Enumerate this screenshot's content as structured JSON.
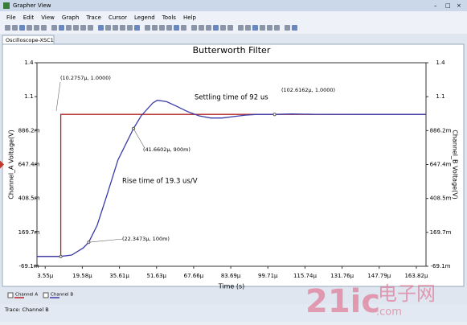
{
  "window": {
    "title": "Grapher View"
  },
  "menu": [
    "File",
    "Edit",
    "View",
    "Graph",
    "Trace",
    "Cursor",
    "Legend",
    "Tools",
    "Help"
  ],
  "tab": "Oscilloscope-XSC1",
  "chart_data": {
    "type": "line",
    "title": "Butterworth Filter",
    "x_label": "Time (s)",
    "y_label": "Channel_A Voltage(V)",
    "y2_label": "Channel_B Voltage(V)",
    "xlim": [
      0,
      0.000168
    ],
    "xticks": [
      {
        "value": 3.55e-06,
        "label": "3.55µ"
      },
      {
        "value": 1.958e-05,
        "label": "19.58µ"
      },
      {
        "value": 3.561e-05,
        "label": "35.61µ"
      },
      {
        "value": 5.163e-05,
        "label": "51.63µ"
      },
      {
        "value": 6.766e-05,
        "label": "67.66µ"
      },
      {
        "value": 8.369e-05,
        "label": "83.69µ"
      },
      {
        "value": 9.971e-05,
        "label": "99.71µ"
      },
      {
        "value": 0.00011574,
        "label": "115.74µ"
      },
      {
        "value": 0.00013176,
        "label": "131.76µ"
      },
      {
        "value": 0.00014779,
        "label": "147.79µ"
      },
      {
        "value": 0.00016382,
        "label": "163.82µ"
      }
    ],
    "ylim": [
      -0.0691,
      1.3639
    ],
    "yticks": [
      {
        "value": 1.3639,
        "label": "1.4"
      },
      {
        "value": 1.1251,
        "label": "1.1"
      },
      {
        "value": 0.8862,
        "label": "886.2m"
      },
      {
        "value": 0.6474,
        "label": "647.4m"
      },
      {
        "value": 0.4085,
        "label": "408.5m"
      },
      {
        "value": 0.1697,
        "label": "169.7m"
      },
      {
        "value": -0.0691,
        "label": "-69.1m"
      }
    ],
    "y2lim": [
      -0.0691,
      1.3639
    ],
    "y2ticks": [
      {
        "value": 1.3639,
        "label": "1.4"
      },
      {
        "value": 1.1251,
        "label": "1.1"
      },
      {
        "value": 0.8862,
        "label": "886.2m"
      },
      {
        "value": 0.6474,
        "label": "647.4m"
      },
      {
        "value": 0.4085,
        "label": "408.5m"
      },
      {
        "value": 0.1697,
        "label": "169.7m"
      },
      {
        "value": -0.0691,
        "label": "-69.1m"
      }
    ],
    "grid": false,
    "series": [
      {
        "name": "Channel A",
        "color": "#b22222",
        "x": [
          0,
          1.02757e-05,
          1.02757e-05,
          0.000168
        ],
        "values": [
          0,
          0,
          1,
          1
        ]
      },
      {
        "name": "Channel B",
        "color": "#3a3aa8",
        "axis": "y2",
        "x": [
          0,
          1e-05,
          1.5e-05,
          2e-05,
          2.23473e-05,
          2.6e-05,
          3e-05,
          3.5e-05,
          4.16602e-05,
          4.5e-05,
          5e-05,
          5.2e-05,
          5.6e-05,
          6e-05,
          6.5e-05,
          7e-05,
          7.5e-05,
          8e-05,
          8.5e-05,
          9e-05,
          9.5e-05,
          0.0001026162,
          0.00011,
          0.00012,
          0.00014,
          0.000168
        ],
        "values": [
          0,
          0,
          0.01,
          0.06,
          0.1,
          0.22,
          0.42,
          0.68,
          0.9,
          0.99,
          1.08,
          1.1,
          1.09,
          1.06,
          1.02,
          0.99,
          0.975,
          0.975,
          0.985,
          0.995,
          1.0,
          1.0,
          1.003,
          1.001,
          1.0,
          1.0
        ]
      }
    ],
    "annotations": [
      "(10.2757µ, 1.0000)",
      "(102.6162µ, 1.0000)",
      "(41.6602µ, 900m)",
      "(22.3473µ, 100m)",
      "Settling time of 92 us",
      "Rise time of 19.3 us/V"
    ]
  },
  "status": "Trace: Channel B",
  "watermark": [
    "21ic",
    ".com",
    "电子网"
  ]
}
